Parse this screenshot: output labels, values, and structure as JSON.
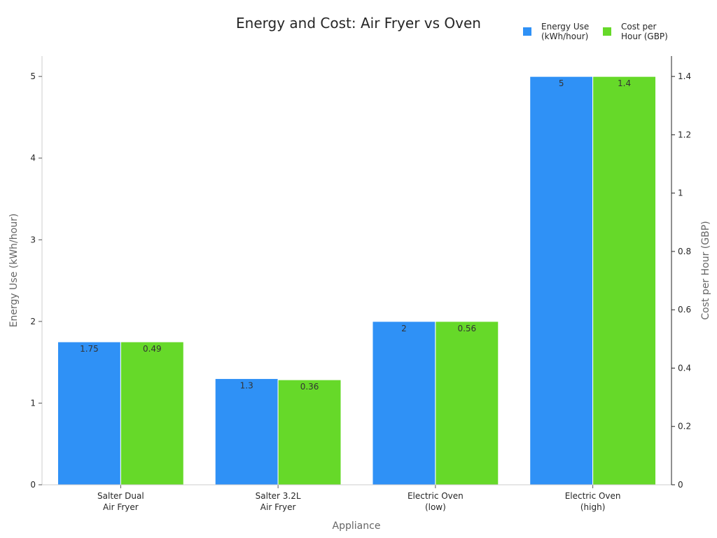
{
  "chart_data": {
    "type": "bar",
    "title": "Energy and Cost: Air Fryer vs Oven",
    "xlabel": "Appliance",
    "ylabel": "Energy Use (kWh/hour)",
    "y2label": "Cost per Hour (GBP)",
    "categories": [
      [
        "Salter Dual",
        "Air Fryer"
      ],
      [
        "Salter 3.2L",
        "Air Fryer"
      ],
      [
        "Electric Oven",
        "(low)"
      ],
      [
        "Electric Oven",
        "(high)"
      ]
    ],
    "series": [
      {
        "name": [
          "Energy Use",
          "(kWh/hour)"
        ],
        "axis": "left",
        "color": "#2F91F6",
        "values": [
          1.75,
          1.3,
          2,
          5
        ],
        "labels": [
          "1.75",
          "1.3",
          "2",
          "5"
        ]
      },
      {
        "name": [
          "Cost per",
          "Hour (GBP)"
        ],
        "axis": "right",
        "color": "#66D929",
        "values": [
          0.49,
          0.36,
          0.56,
          1.4
        ],
        "labels": [
          "0.49",
          "0.36",
          "0.56",
          "1.4"
        ]
      }
    ],
    "ylim": [
      0,
      5.25
    ],
    "y2lim": [
      0,
      1.47
    ],
    "yticks": [
      0,
      1,
      2,
      3,
      4,
      5
    ],
    "y2ticks": [
      0,
      0.2,
      0.4,
      0.6,
      0.8,
      1,
      1.2,
      1.4
    ],
    "y2ticklabels": [
      "0",
      "0.2",
      "0.4",
      "0.6",
      "0.8",
      "1",
      "1.2",
      "1.4"
    ],
    "legend_position": "top-right",
    "grid": false
  }
}
